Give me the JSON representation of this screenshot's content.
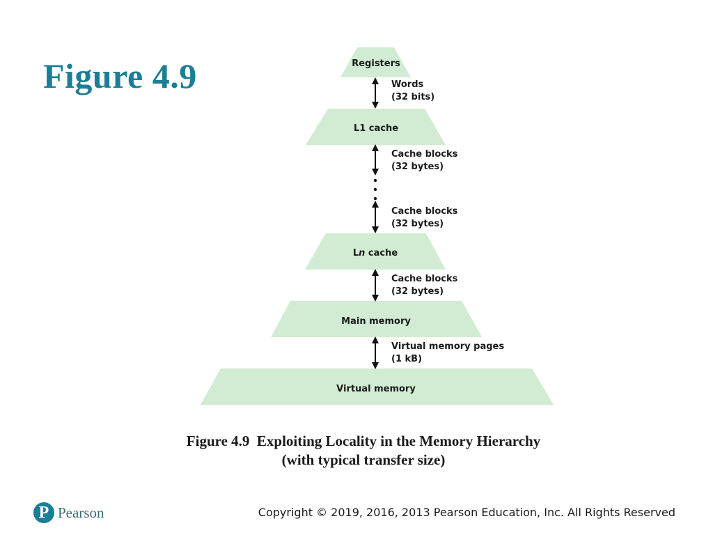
{
  "slide": {
    "title": "Figure 4.9"
  },
  "hierarchy": {
    "levels": [
      {
        "label": "Registers"
      },
      {
        "label": "L1 cache"
      },
      {
        "label_prefix": "L",
        "label_italic": "n",
        "label_suffix": " cache"
      },
      {
        "label": "Main memory"
      },
      {
        "label": "Virtual memory"
      }
    ],
    "transfers": [
      {
        "line1": "Words",
        "line2": "(32 bits)"
      },
      {
        "line1": "Cache blocks",
        "line2": "(32 bytes)"
      },
      {
        "line1": "Cache blocks",
        "line2": "(32 bytes)"
      },
      {
        "line1": "Cache blocks",
        "line2": "(32 bytes)"
      },
      {
        "line1": "Virtual memory pages",
        "line2": "(1 kB)"
      }
    ],
    "level_fill": "#d1ecd3"
  },
  "caption": {
    "line1": "Figure 4.9  Exploiting Locality in the Memory Hierarchy",
    "line2": "(with typical transfer size)"
  },
  "footer": {
    "logo_letter": "P",
    "logo_word": "Pearson",
    "copyright": "Copyright © 2019, 2016, 2013 Pearson Education, Inc. All Rights Reserved"
  },
  "colors": {
    "title": "#1a7f96",
    "level_fill": "#d1ecd3"
  }
}
